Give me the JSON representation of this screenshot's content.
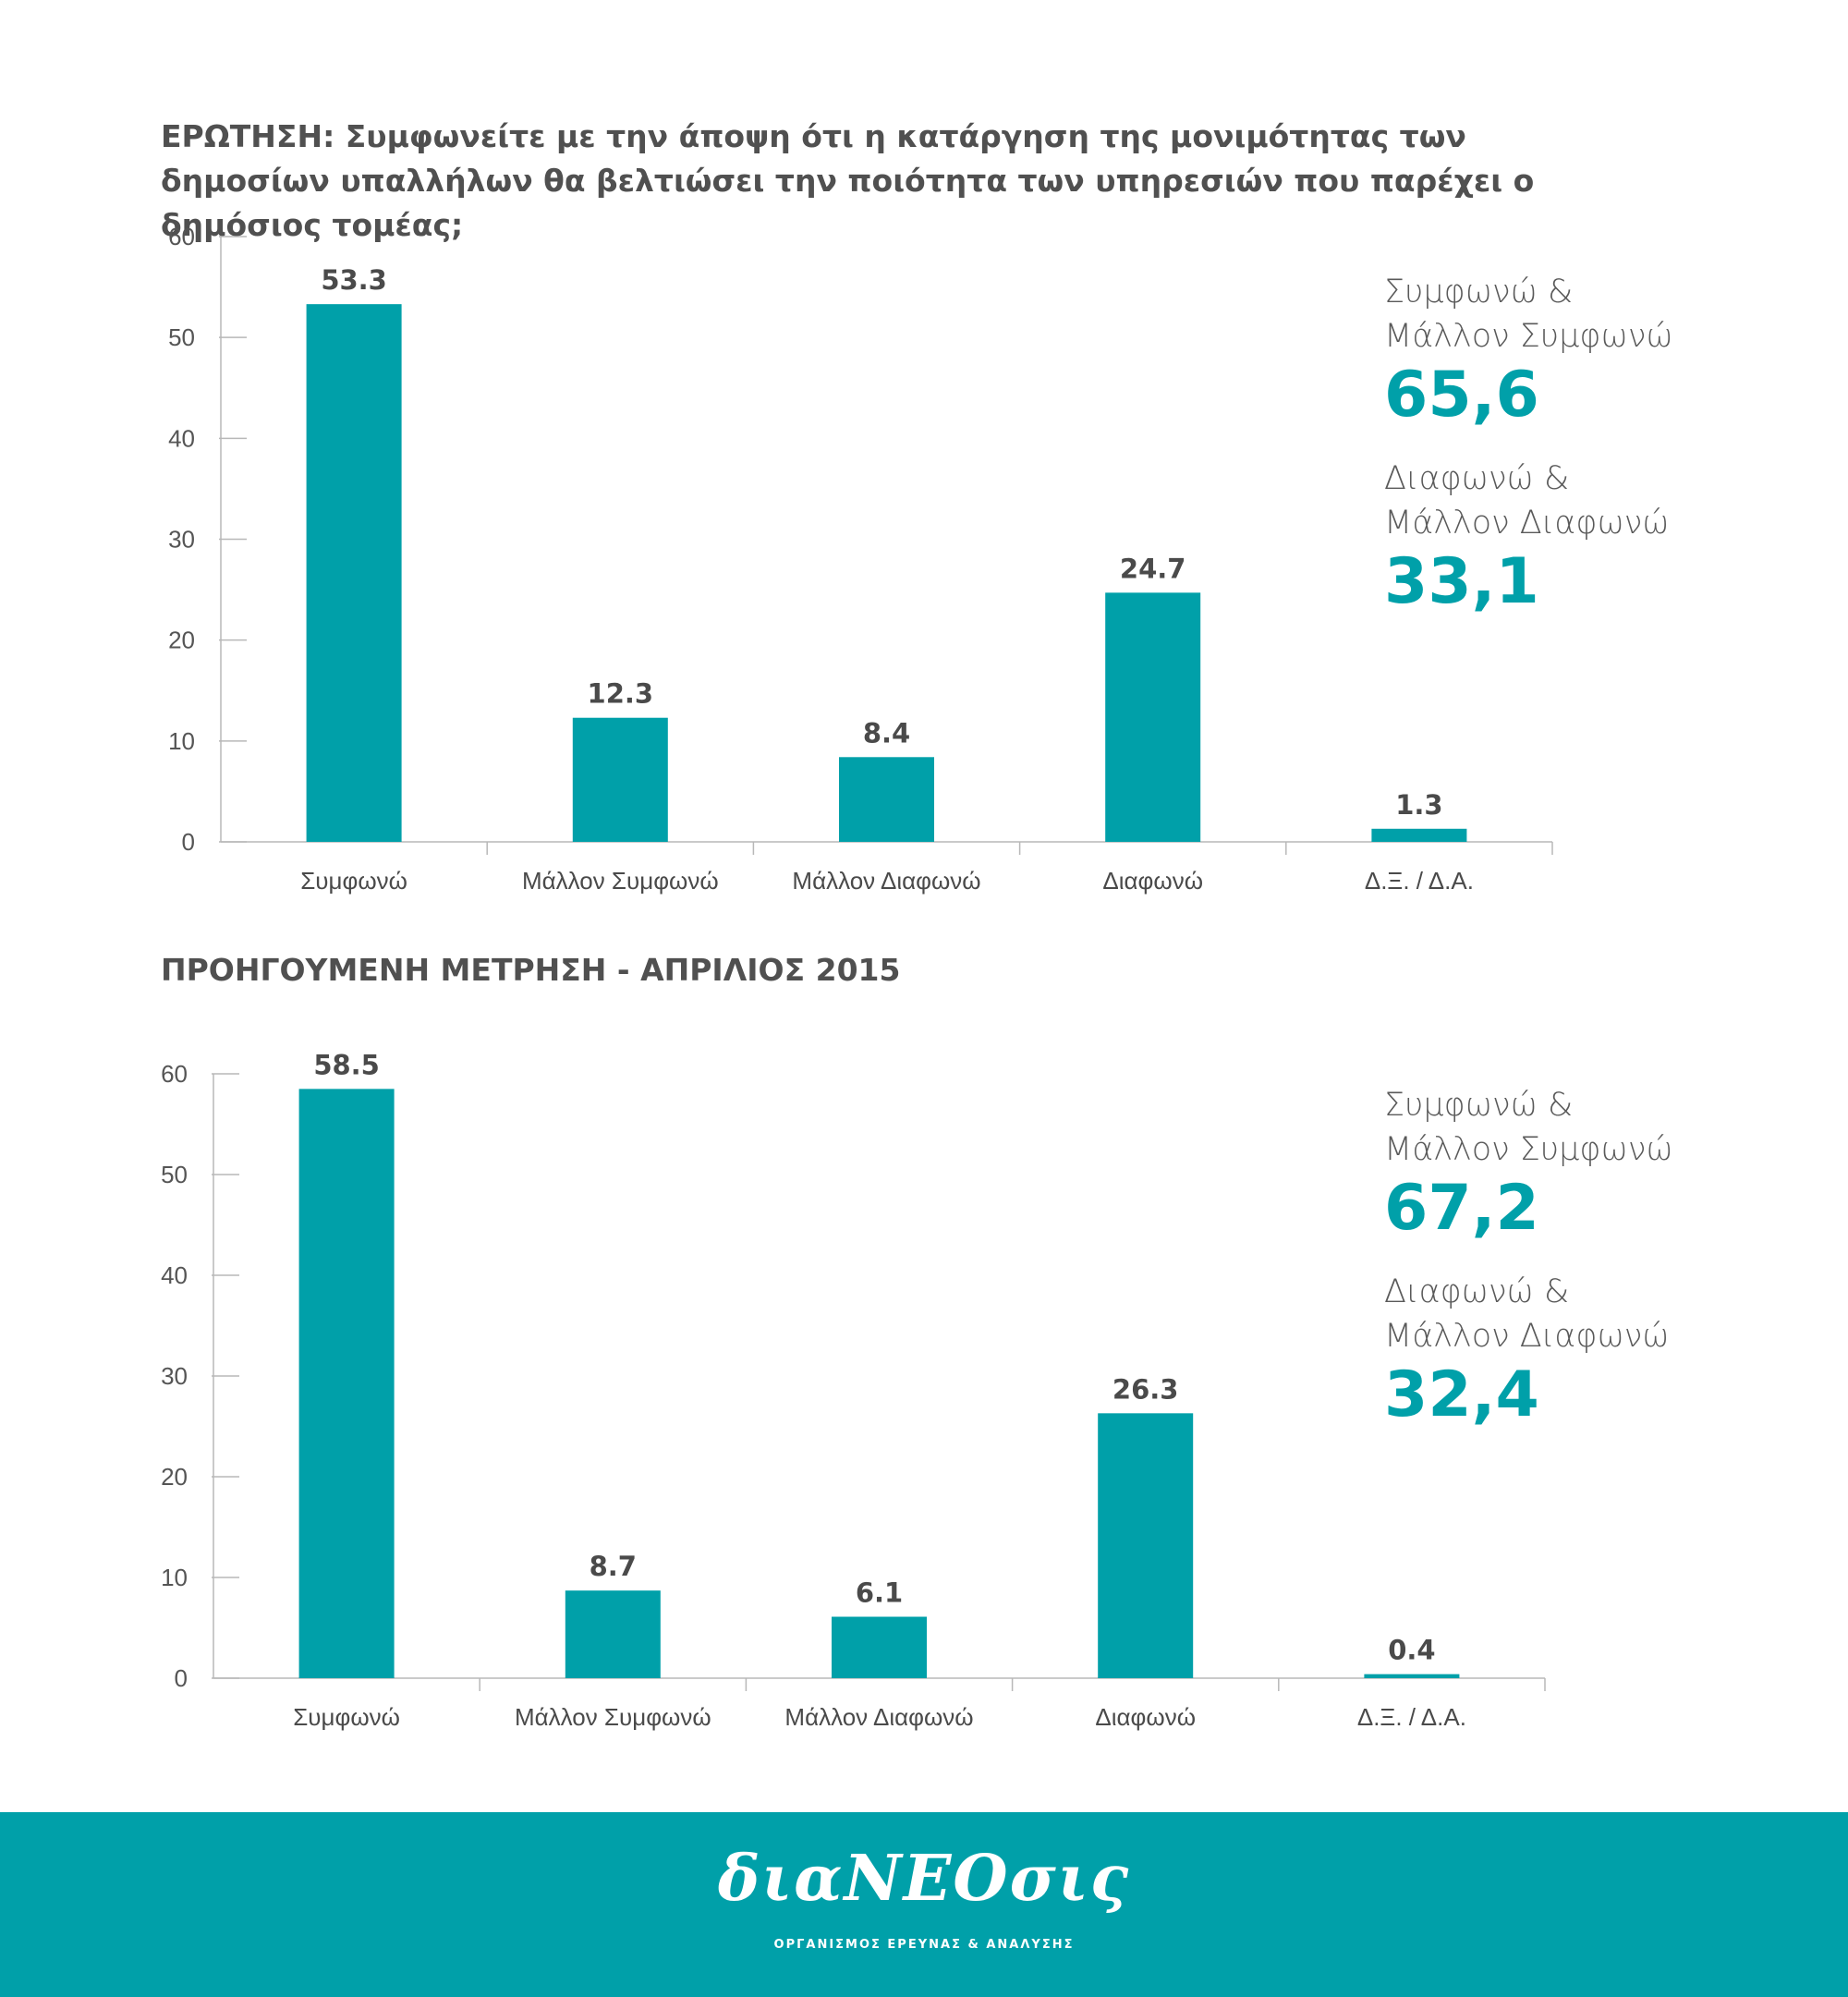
{
  "colors": {
    "accent": "#00a0a9",
    "text": "#4a4a4a",
    "axis": "#b8b8b8"
  },
  "question_title": "ΕΡΩΤΗΣΗ: Συμφωνείτε με την άποψη ότι η κατάργηση της μονιμότητας των δημοσίων υπαλλήλων θα βελτιώσει την ποιότητα των υπηρεσιών που παρέχει ο δημόσιος τομέας;",
  "previous_title": "ΠΡΟΗΓΟΥΜΕΝΗ ΜΕΤΡΗΣΗ - ΑΠΡΙΛΙΟΣ 2015",
  "summary_current": {
    "agree_label": "Συμφωνώ & Μάλλον Συμφωνώ",
    "agree_value": "65,6",
    "disagree_label": "Διαφωνώ & Μάλλον Διαφωνώ",
    "disagree_value": "33,1"
  },
  "summary_previous": {
    "agree_label": "Συμφωνώ & Μάλλον Συμφωνώ",
    "agree_value": "67,2",
    "disagree_label": "Διαφωνώ & Μάλλον Διαφωνώ",
    "disagree_value": "32,4"
  },
  "chart_data": [
    {
      "type": "bar",
      "title": "ΕΡΩΤΗΣΗ: Συμφωνείτε με την άποψη ότι η κατάργηση της μονιμότητας των δημοσίων υπαλλήλων θα βελτιώσει την ποιότητα των υπηρεσιών που παρέχει ο δημόσιος τομέας;",
      "categories": [
        "Συμφωνώ",
        "Μάλλον Συμφωνώ",
        "Μάλλον Διαφωνώ",
        "Διαφωνώ",
        "Δ.Ξ. / Δ.Α."
      ],
      "values": [
        53.3,
        12.3,
        8.4,
        24.7,
        1.3
      ],
      "value_labels": [
        "53.3",
        "12.3",
        "8.4",
        "24.7",
        "1.3"
      ],
      "yticks": [
        "0",
        "10",
        "20",
        "30",
        "40",
        "50",
        "60"
      ],
      "ylim": [
        0,
        60
      ],
      "xlabel": "",
      "ylabel": "",
      "grid": false,
      "legend": "none",
      "color": "#00a0a9"
    },
    {
      "type": "bar",
      "title": "ΠΡΟΗΓΟΥΜΕΝΗ ΜΕΤΡΗΣΗ - ΑΠΡΙΛΙΟΣ 2015",
      "categories": [
        "Συμφωνώ",
        "Μάλλον Συμφωνώ",
        "Μάλλον Διαφωνώ",
        "Διαφωνώ",
        "Δ.Ξ. / Δ.Α."
      ],
      "values": [
        58.5,
        8.7,
        6.1,
        26.3,
        0.4
      ],
      "value_labels": [
        "58.5",
        "8.7",
        "6.1",
        "26.3",
        "0.4"
      ],
      "yticks": [
        "0",
        "10",
        "20",
        "30",
        "40",
        "50",
        "60"
      ],
      "ylim": [
        0,
        60
      ],
      "xlabel": "",
      "ylabel": "",
      "grid": false,
      "legend": "none",
      "color": "#00a0a9"
    }
  ],
  "footer": {
    "logo_text": "διαΝΕΟσις",
    "subtitle": "ΟΡΓΑΝΙΣΜΟΣ ΕΡΕΥΝΑΣ & ΑΝΑΛΥΣΗΣ",
    "background": "#00a0a9"
  }
}
